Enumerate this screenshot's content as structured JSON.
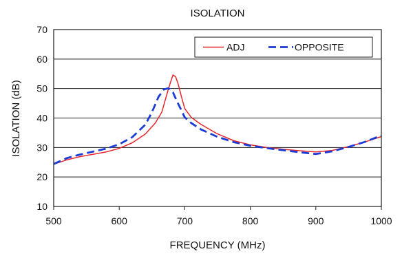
{
  "chart_data": {
    "type": "line",
    "title": "ISOLATION",
    "xlabel": "FREQUENCY (MHz)",
    "ylabel": "ISOLATION (dB)",
    "xlim": [
      500,
      1000
    ],
    "ylim": [
      10,
      70
    ],
    "x_ticks": [
      500,
      600,
      700,
      800,
      900,
      1000
    ],
    "y_ticks": [
      10,
      20,
      30,
      40,
      50,
      60,
      70
    ],
    "grid": "horizontal",
    "legend_position": "top-right",
    "series": [
      {
        "name": "ADJ",
        "color": "#e8262a",
        "style": "solid",
        "x": [
          500,
          520,
          540,
          560,
          580,
          600,
          620,
          640,
          655,
          665,
          672,
          678,
          682,
          686,
          690,
          695,
          700,
          710,
          725,
          750,
          775,
          800,
          825,
          850,
          875,
          900,
          925,
          950,
          975,
          1000
        ],
        "y": [
          24.3,
          25.8,
          26.9,
          27.7,
          28.5,
          29.7,
          31.6,
          34.6,
          38.3,
          42,
          47.5,
          52,
          54.6,
          54,
          51.5,
          47.2,
          43.2,
          40.2,
          37.8,
          34.6,
          32.3,
          30.9,
          30,
          29.4,
          28.9,
          28.5,
          29,
          30.3,
          31.9,
          33.7
        ]
      },
      {
        "name": "OPPOSITE",
        "color": "#1b3bd6",
        "style": "dashed",
        "x": [
          500,
          520,
          540,
          560,
          580,
          600,
          620,
          640,
          650,
          660,
          668,
          675,
          682,
          688,
          695,
          700,
          710,
          725,
          750,
          775,
          800,
          825,
          850,
          875,
          900,
          925,
          950,
          975,
          1000
        ],
        "y": [
          24.4,
          26.4,
          27.6,
          28.6,
          29.6,
          31.1,
          33.5,
          37.8,
          42,
          47.2,
          49.7,
          50.1,
          48.7,
          45.7,
          42.6,
          40.2,
          38.3,
          36.1,
          33.6,
          31.8,
          30.6,
          29.8,
          29.1,
          28.4,
          27.8,
          28.7,
          30.2,
          31.9,
          34.1
        ]
      }
    ]
  }
}
